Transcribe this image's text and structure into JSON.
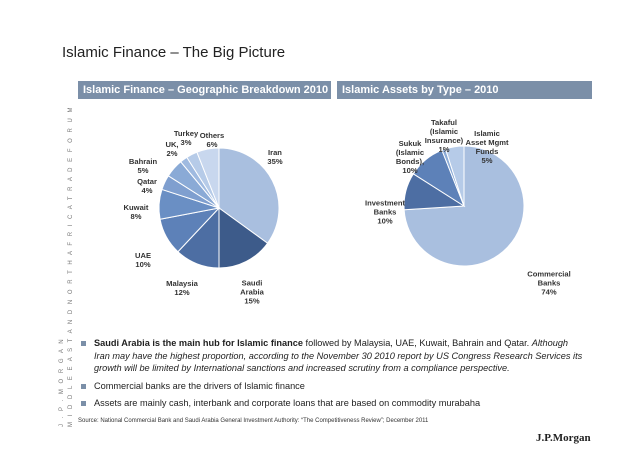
{
  "side_text": {
    "line1": "J . P .  M O R G A N",
    "line2": "M I D D L E  E A S T  A N D  N O R T H  A F R I C A  T R A D E  F O R U M"
  },
  "title": "Islamic Finance – The Big Picture",
  "colors": {
    "header_bg": "#7b8fa8",
    "bullet": "#7b8fa8",
    "slice_shades": [
      "#a9bfdf",
      "#3d5b8a",
      "#4d6ea3",
      "#5d81b8",
      "#6a8fc4",
      "#8aaad6",
      "#9fbae0",
      "#b6cbe8",
      "#c8d7ee"
    ]
  },
  "chart_data": [
    {
      "type": "pie",
      "title": "Islamic Finance – Geographic Breakdown 2010",
      "slices": [
        {
          "label": "Iran",
          "value": 35,
          "display": "Iran\n35%"
        },
        {
          "label": "Saudi Arabia",
          "value": 15,
          "display": "Saudi\nArabia\n15%"
        },
        {
          "label": "Malaysia",
          "value": 12,
          "display": "Malaysia\n12%"
        },
        {
          "label": "UAE",
          "value": 10,
          "display": "UAE\n10%"
        },
        {
          "label": "Kuwait",
          "value": 8,
          "display": "Kuwait\n8%"
        },
        {
          "label": "Qatar",
          "value": 4,
          "display": "Qatar\n4%"
        },
        {
          "label": "Bahrain",
          "value": 5,
          "display": "Bahrain\n5%"
        },
        {
          "label": "UK",
          "value": 2,
          "display": "UK,\n2%"
        },
        {
          "label": "Turkey",
          "value": 3,
          "display": "Turkey\n3%"
        },
        {
          "label": "Others",
          "value": 6,
          "display": "Others\n6%"
        }
      ]
    },
    {
      "type": "pie",
      "title": "Islamic Assets by Type – 2010",
      "slices": [
        {
          "label": "Commercial Banks",
          "value": 74,
          "display": "Commercial\nBanks\n74%"
        },
        {
          "label": "Investment Banks",
          "value": 10,
          "display": "Investment\nBanks\n10%"
        },
        {
          "label": "Sukuk (Islamic Bonds)",
          "value": 10,
          "display": "Sukuk\n(Islamic\nBonds),\n10%"
        },
        {
          "label": "Takaful (Islamic Insurance)",
          "value": 1,
          "display": "Takaful\n(Islamic\nInsurance)\n1%"
        },
        {
          "label": "Islamic Asset Mgmt Funds",
          "value": 5,
          "display": "Islamic\nAsset Mgmt\nFunds\n5%"
        }
      ]
    }
  ],
  "bullets": {
    "b1_bold": "Saudi Arabia is the main hub for Islamic finance",
    "b1_plain": " followed by Malaysia, UAE, Kuwait, Bahrain and Qatar. ",
    "b1_italic": "Although Iran may have the highest proportion, according to the November 30 2010 report by US Congress Research Services its growth will be limited by International sanctions and increased scrutiny from a compliance perspective.",
    "b2": "Commercial banks are the drivers of Islamic finance",
    "b3": "Assets are mainly cash, interbank and corporate loans that  are based on commodity murabaha"
  },
  "source": "Source:   National Commercial Bank and  Saudi Arabia General Investment Authority: “The Competitiveness Review”; December 2011",
  "logo": "J.P.Morgan"
}
